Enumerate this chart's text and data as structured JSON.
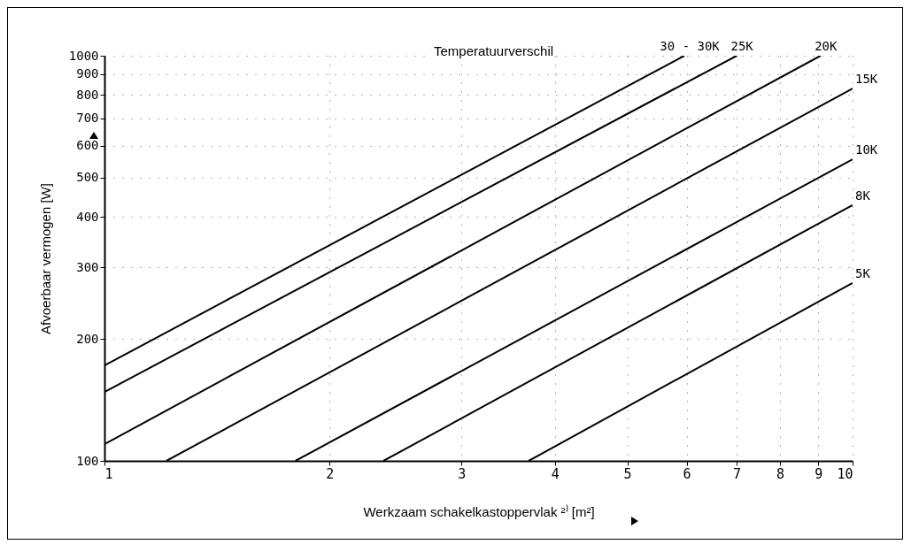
{
  "chart_data": {
    "type": "line",
    "legend_title": "Temperatuurverschil",
    "xlabel": "Werkzaam schakelkastoppervlak ²⁾ [m²]",
    "ylabel": "Afvoerbaar vermogen [W]",
    "log": "xy",
    "xlim": [
      1,
      10
    ],
    "ylim": [
      100,
      1000
    ],
    "xticks": [
      1,
      2,
      3,
      4,
      5,
      6,
      7,
      8,
      9,
      10
    ],
    "yticks": [
      100,
      200,
      300,
      400,
      500,
      600,
      700,
      800,
      900,
      1000
    ],
    "grid": true,
    "line_style": "solid",
    "marker": "none",
    "legend": false,
    "series": [
      {
        "name": "30 - 30K",
        "color": "#000000",
        "x": [
          1,
          5.96
        ],
        "values": [
          172,
          1000
        ]
      },
      {
        "name": "25K",
        "color": "#000000",
        "x": [
          1,
          7.0
        ],
        "values": [
          148,
          1000
        ]
      },
      {
        "name": "20K",
        "color": "#000000",
        "x": [
          1,
          9.06
        ],
        "values": [
          110,
          1000
        ]
      },
      {
        "name": "15K",
        "color": "#000000",
        "x": [
          1.21,
          10
        ],
        "values": [
          100,
          830
        ]
      },
      {
        "name": "10K",
        "color": "#000000",
        "x": [
          1.8,
          10
        ],
        "values": [
          100,
          555
        ]
      },
      {
        "name": "8K",
        "color": "#000000",
        "x": [
          2.36,
          10
        ],
        "values": [
          100,
          428
        ]
      },
      {
        "name": "5K",
        "color": "#000000",
        "x": [
          3.69,
          10
        ],
        "values": [
          100,
          275
        ]
      }
    ]
  }
}
